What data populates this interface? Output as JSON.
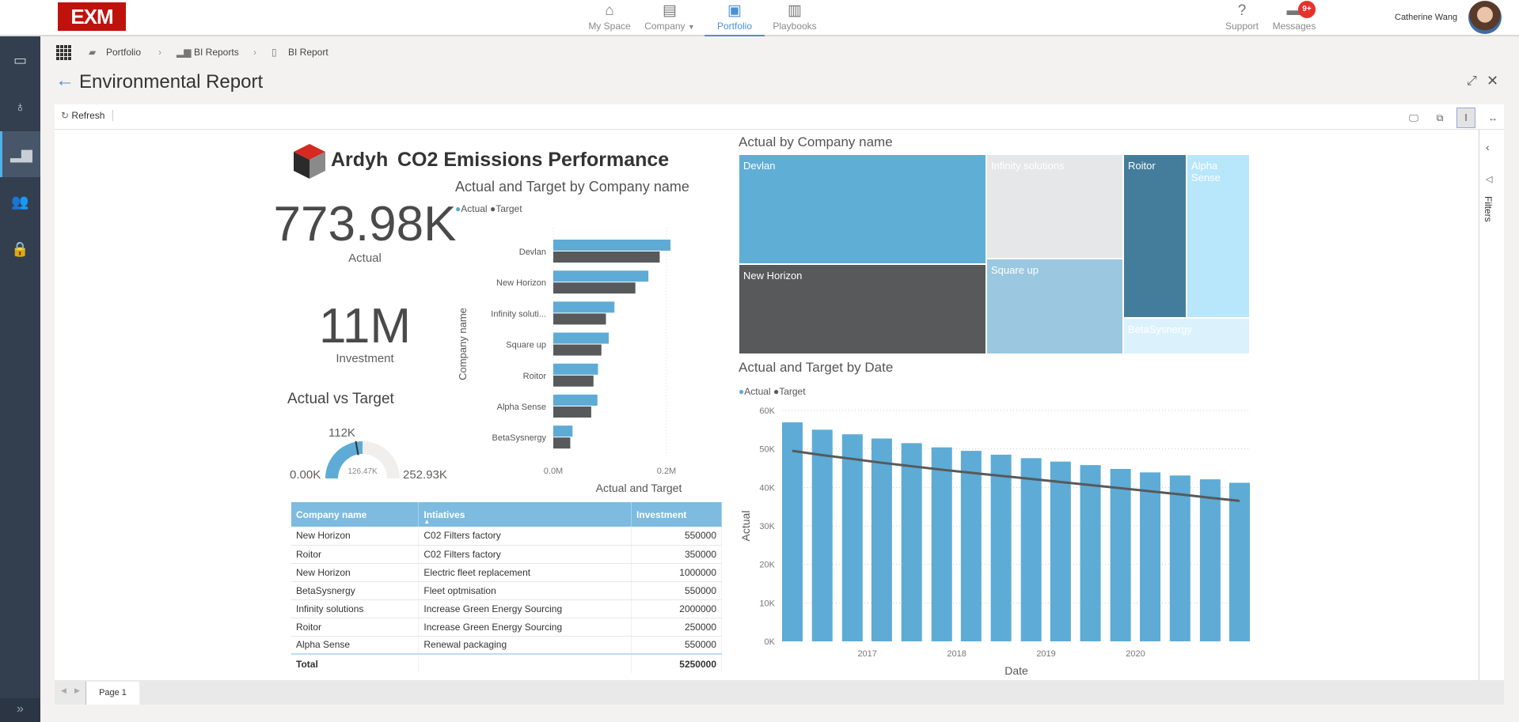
{
  "header": {
    "logo": "EXM",
    "nav": [
      {
        "label": "My Space",
        "icon": "home-icon"
      },
      {
        "label": "Company",
        "icon": "company-icon"
      },
      {
        "label": "Portfolio",
        "icon": "portfolio-icon",
        "active": true
      },
      {
        "label": "Playbooks",
        "icon": "playbooks-icon"
      }
    ],
    "support": "Support",
    "messages": "Messages",
    "messages_badge": "9+",
    "user_name": "Catherine Wang"
  },
  "sidebar": {
    "items": [
      "dashboard-icon",
      "funds-icon",
      "reports-icon",
      "users-icon",
      "lock-icon"
    ],
    "active": 2
  },
  "breadcrumb": [
    "Portfolio",
    "BI Reports",
    "BI Report"
  ],
  "page_title": "Environmental Report",
  "toolbar": {
    "refresh": "Refresh"
  },
  "filters_label": "Filters",
  "page_tab": "Page 1",
  "report": {
    "brand": "Ardyh",
    "title": "CO2 Emissions Performance",
    "kpi_actual": {
      "value": "773.98K",
      "label": "Actual"
    },
    "kpi_investment": {
      "value": "11M",
      "label": "Investment"
    },
    "gauge": {
      "title": "Actual vs Target",
      "min": "0.00K",
      "max": "252.93K",
      "value_label": "126.47K",
      "target_label": "112K",
      "min_value": 0,
      "max_value": 252.93,
      "value": 126.47,
      "target": 112
    }
  },
  "colors": {
    "actual": "#5eabd6",
    "target": "#58595b",
    "table_header": "#7dbbe0"
  },
  "table": {
    "columns": [
      "Company name",
      "Intiatives",
      "Investment"
    ],
    "rows": [
      [
        "New Horizon",
        "C02 Filters factory",
        "550000"
      ],
      [
        "Roitor",
        "C02 Filters factory",
        "350000"
      ],
      [
        "New Horizon",
        "Electric fleet replacement",
        "1000000"
      ],
      [
        "BetaSysnergy",
        "Fleet optmisation",
        "550000"
      ],
      [
        "Infinity solutions",
        "Increase Green Energy Sourcing",
        "2000000"
      ],
      [
        "Roitor",
        "Increase Green Energy Sourcing",
        "250000"
      ],
      [
        "Alpha Sense",
        "Renewal packaging",
        "550000"
      ]
    ],
    "total_label": "Total",
    "total": "5250000"
  },
  "chart_data": [
    {
      "type": "bar",
      "orientation": "horizontal",
      "title": "Actual and Target by Company name",
      "xlabel": "Actual and Target",
      "ylabel": "Company name",
      "legend": [
        "Actual",
        "Target"
      ],
      "legend_placement": "top-left",
      "categories": [
        "Devlan",
        "New Horizon",
        "Infinity soluti...",
        "Square up",
        "Roitor",
        "Alpha Sense",
        "BetaSysnergy"
      ],
      "series": [
        {
          "name": "Actual",
          "values": [
            0.207,
            0.168,
            0.108,
            0.098,
            0.079,
            0.078,
            0.034
          ]
        },
        {
          "name": "Target",
          "values": [
            0.188,
            0.145,
            0.093,
            0.085,
            0.071,
            0.067,
            0.03
          ]
        }
      ],
      "xticks": [
        "0.0M",
        "0.2M"
      ],
      "xlim": [
        0,
        0.2
      ],
      "grid": true
    },
    {
      "type": "treemap",
      "title": "Actual by Company name",
      "items": [
        {
          "name": "Devlan",
          "value": 0.207,
          "color": "#5faed6"
        },
        {
          "name": "New Horizon",
          "value": 0.168,
          "color": "#58595b"
        },
        {
          "name": "Infinity solutions",
          "value": 0.108,
          "color": "#e6e7e8"
        },
        {
          "name": "Square up",
          "value": 0.098,
          "color": "#9bc8e0"
        },
        {
          "name": "Roitor",
          "value": 0.079,
          "color": "#447d9c"
        },
        {
          "name": "Alpha Sense",
          "value": 0.078,
          "color": "#b8e6fb"
        },
        {
          "name": "BetaSysnergy",
          "value": 0.034,
          "color": "#dbf2fd"
        }
      ]
    },
    {
      "type": "bar+line",
      "title": "Actual and Target by Date",
      "xlabel": "Date",
      "ylabel": "Actual",
      "legend": [
        "Actual",
        "Target"
      ],
      "legend_placement": "top-left",
      "x": [
        "2016-03",
        "2016-07",
        "2016-11",
        "2017-03",
        "2017-07",
        "2017-11",
        "2018-03",
        "2018-07",
        "2018-11",
        "2019-03",
        "2019-07",
        "2019-11",
        "2020-03",
        "2020-07",
        "2020-11",
        "2021-03"
      ],
      "series": [
        {
          "name": "Actual",
          "type": "bar",
          "values": [
            56900,
            55000,
            53800,
            52700,
            51500,
            50400,
            49500,
            48500,
            47600,
            46700,
            45800,
            44800,
            43900,
            43100,
            42100,
            41200
          ]
        },
        {
          "name": "Target",
          "type": "line",
          "values": [
            49500,
            48400,
            47400,
            46400,
            45500,
            44600,
            43800,
            43000,
            42200,
            41400,
            40600,
            39800,
            39000,
            38200,
            37300,
            36500
          ]
        }
      ],
      "yticks": [
        "0K",
        "10K",
        "20K",
        "30K",
        "40K",
        "50K",
        "60K"
      ],
      "xticks": [
        "2017",
        "2018",
        "2019",
        "2020"
      ],
      "ylim": [
        0,
        60000
      ],
      "grid": true
    }
  ]
}
